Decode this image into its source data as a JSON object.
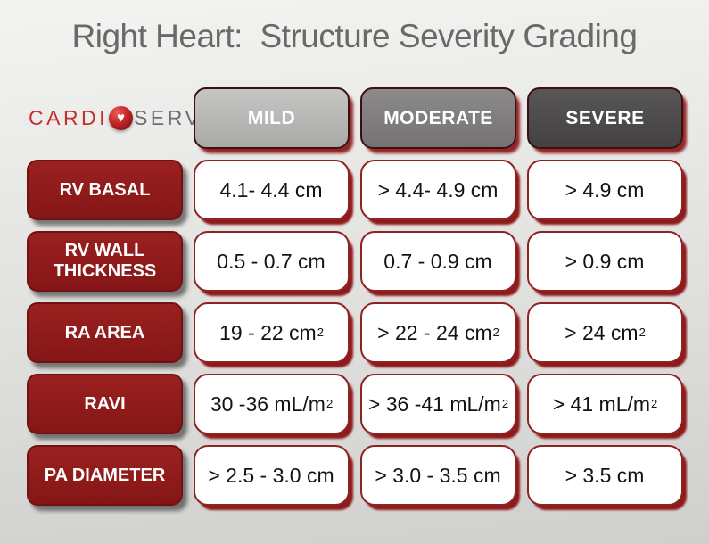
{
  "chart_data": {
    "type": "table",
    "title": "Right Heart:  Structure Severity Grading",
    "columns": [
      {
        "label": "MILD",
        "color": "#b4b2b2"
      },
      {
        "label": "MODERATE",
        "color": "#7e7c7c"
      },
      {
        "label": "SEVERE",
        "color": "#4f4d4d"
      }
    ],
    "rows": [
      {
        "label": "RV BASAL",
        "values": [
          {
            "text": "4.1- 4.4 cm",
            "sup": ""
          },
          {
            "text": "> 4.4- 4.9 cm",
            "sup": ""
          },
          {
            "text": "> 4.9 cm",
            "sup": ""
          }
        ]
      },
      {
        "label": "RV WALL THICKNESS",
        "values": [
          {
            "text": "0.5 - 0.7 cm",
            "sup": ""
          },
          {
            "text": "0.7 - 0.9 cm",
            "sup": ""
          },
          {
            "text": "> 0.9 cm",
            "sup": ""
          }
        ]
      },
      {
        "label": "RA AREA",
        "values": [
          {
            "text": "19 - 22 cm",
            "sup": "2"
          },
          {
            "text": "> 22 - 24 cm",
            "sup": "2"
          },
          {
            "text": "> 24 cm",
            "sup": "2"
          }
        ]
      },
      {
        "label": "RAVI",
        "values": [
          {
            "text": "30 -36 mL/m",
            "sup": "2"
          },
          {
            "text": "> 36 -41 mL/m",
            "sup": "2"
          },
          {
            "text": "> 41 mL/m",
            "sup": "2"
          }
        ]
      },
      {
        "label": "PA DIAMETER",
        "values": [
          {
            "text": "> 2.5 - 3.0 cm",
            "sup": ""
          },
          {
            "text": "> 3.0 - 3.5 cm",
            "sup": ""
          },
          {
            "text": "> 3.5 cm",
            "sup": ""
          }
        ]
      }
    ]
  },
  "logo": {
    "text_primary": "CARDI",
    "text_secondary": "SERV",
    "heart_glyph": "♥",
    "primary_color": "#c43030",
    "secondary_color": "#6e6e6e"
  },
  "colors": {
    "accent_maroon": "#8e1b1b",
    "title_gray": "#6b6868",
    "cell_border": "#8e2323",
    "background_top": "#f3f3f1",
    "background_bottom": "#cfcfcd"
  }
}
